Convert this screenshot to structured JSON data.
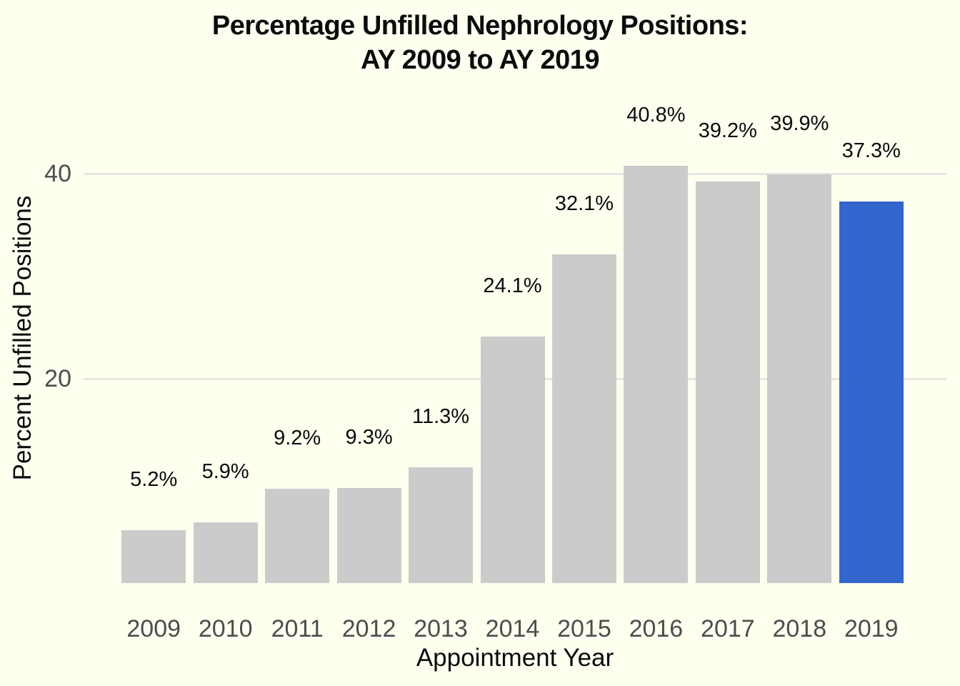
{
  "title": {
    "line1": "Percentage Unfilled Nephrology Positions:",
    "line2": "AY 2009 to AY 2019"
  },
  "chart_data": {
    "type": "bar",
    "title": "Percentage Unfilled Nephrology Positions: AY 2009 to AY 2019",
    "xlabel": "Appointment Year",
    "ylabel": "Percent Unfilled Positions",
    "categories": [
      "2009",
      "2010",
      "2011",
      "2012",
      "2013",
      "2014",
      "2015",
      "2016",
      "2017",
      "2018",
      "2019"
    ],
    "values": [
      5.2,
      5.9,
      9.2,
      9.3,
      11.3,
      24.1,
      32.1,
      40.8,
      39.2,
      39.9,
      37.3
    ],
    "value_labels": [
      "5.2%",
      "5.9%",
      "9.2%",
      "9.3%",
      "11.3%",
      "24.1%",
      "32.1%",
      "40.8%",
      "39.2%",
      "39.9%",
      "37.3%"
    ],
    "yticks": [
      20,
      40
    ],
    "ylim": [
      0,
      47
    ],
    "grid": "horizontal",
    "legend": "none",
    "highlight_category": "2019",
    "colors": {
      "bar": "#CBCBCB",
      "highlight": "#3366CC",
      "background": "#FFFFF0",
      "gridline": "#E7E7E2",
      "tick_text": "#4d4d4d",
      "label_text": "#0c0c0c"
    }
  }
}
